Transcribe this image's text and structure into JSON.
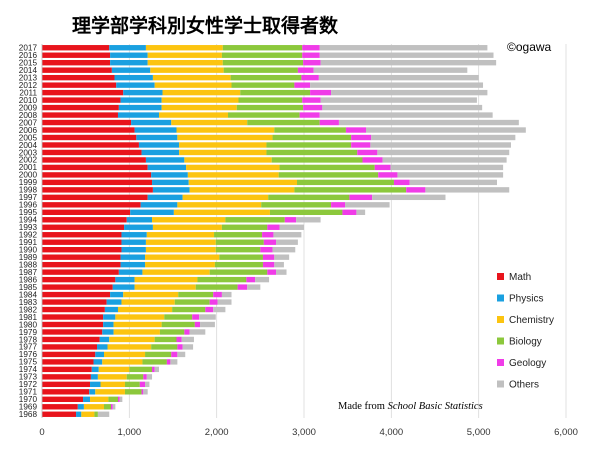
{
  "chart_data": {
    "type": "bar",
    "orientation": "horizontal",
    "stacked": true,
    "title": "理学部学科別女性学士取得者数",
    "credit": "©ogawa",
    "source_prefix": "Made from ",
    "source_italic": "School Basic Statistics",
    "legend_position": "right",
    "xlim": [
      0,
      6000
    ],
    "x_ticks": [
      "0",
      "1,000",
      "2,000",
      "3,000",
      "4,000",
      "5,000",
      "6,000"
    ],
    "x_tick_values": [
      0,
      1000,
      2000,
      3000,
      4000,
      5000,
      6000
    ],
    "grid": true,
    "categories": [
      "2017",
      "2016",
      "2015",
      "2014",
      "2013",
      "2012",
      "2011",
      "2010",
      "2009",
      "2008",
      "2007",
      "2006",
      "2005",
      "2004",
      "2003",
      "2002",
      "2001",
      "2000",
      "1999",
      "1998",
      "1997",
      "1996",
      "1995",
      "1994",
      "1993",
      "1992",
      "1991",
      "1990",
      "1989",
      "1988",
      "1987",
      "1986",
      "1985",
      "1984",
      "1983",
      "1982",
      "1981",
      "1980",
      "1979",
      "1978",
      "1977",
      "1976",
      "1975",
      "1974",
      "1973",
      "1972",
      "1971",
      "1970",
      "1969",
      "1968"
    ],
    "series": [
      {
        "name": "Math",
        "color": "#e8141c",
        "values": [
          770,
          780,
          780,
          800,
          830,
          850,
          930,
          900,
          880,
          870,
          1020,
          1060,
          1080,
          1110,
          1140,
          1190,
          1210,
          1250,
          1260,
          1270,
          1210,
          1130,
          1010,
          970,
          940,
          910,
          910,
          910,
          900,
          900,
          880,
          840,
          810,
          780,
          740,
          720,
          700,
          700,
          690,
          660,
          630,
          610,
          590,
          570,
          560,
          550,
          540,
          470,
          410,
          390
        ]
      },
      {
        "name": "Physics",
        "color": "#1aa0e0",
        "values": [
          420,
          430,
          430,
          440,
          440,
          440,
          450,
          470,
          490,
          470,
          460,
          480,
          470,
          460,
          430,
          440,
          440,
          420,
          420,
          420,
          400,
          420,
          500,
          290,
          330,
          290,
          280,
          280,
          280,
          280,
          270,
          220,
          250,
          150,
          170,
          150,
          140,
          120,
          130,
          110,
          120,
          100,
          100,
          80,
          80,
          120,
          70,
          80,
          70,
          60
        ]
      },
      {
        "name": "Chemistry",
        "color": "#fcc410",
        "values": [
          880,
          850,
          860,
          840,
          890,
          880,
          890,
          880,
          860,
          790,
          870,
          1120,
          1090,
          1000,
          1000,
          1000,
          1070,
          1040,
          1240,
          1200,
          980,
          960,
          1100,
          840,
          790,
          770,
          800,
          800,
          850,
          800,
          770,
          720,
          700,
          630,
          610,
          620,
          560,
          550,
          530,
          520,
          500,
          470,
          460,
          350,
          330,
          280,
          340,
          210,
          230,
          150
        ]
      },
      {
        "name": "Biology",
        "color": "#8cc83c",
        "values": [
          910,
          920,
          920,
          850,
          810,
          720,
          800,
          730,
          760,
          820,
          830,
          820,
          900,
          970,
          1040,
          1040,
          1090,
          1140,
          1110,
          1280,
          930,
          800,
          830,
          680,
          520,
          550,
          550,
          510,
          500,
          550,
          660,
          560,
          480,
          400,
          400,
          380,
          320,
          380,
          280,
          250,
          300,
          300,
          280,
          260,
          190,
          170,
          190,
          110,
          80,
          40
        ]
      },
      {
        "name": "Geology",
        "color": "#f03ce8",
        "values": [
          200,
          200,
          200,
          180,
          200,
          180,
          240,
          210,
          220,
          230,
          220,
          230,
          230,
          220,
          230,
          230,
          180,
          220,
          180,
          220,
          260,
          160,
          160,
          130,
          140,
          130,
          140,
          140,
          130,
          130,
          100,
          100,
          110,
          100,
          90,
          90,
          80,
          60,
          60,
          60,
          60,
          70,
          40,
          30,
          40,
          60,
          20,
          20,
          20,
          0
        ]
      },
      {
        "name": "Others",
        "color": "#c0c0c0",
        "values": [
          1920,
          1990,
          2010,
          1760,
          1830,
          1980,
          1790,
          1790,
          1830,
          1980,
          2060,
          1830,
          1650,
          1610,
          1510,
          1420,
          1290,
          1210,
          1000,
          960,
          840,
          510,
          100,
          280,
          280,
          320,
          250,
          260,
          170,
          110,
          120,
          160,
          150,
          110,
          160,
          140,
          190,
          170,
          180,
          140,
          120,
          90,
          80,
          50,
          60,
          50,
          50,
          30,
          30,
          130
        ]
      }
    ]
  }
}
